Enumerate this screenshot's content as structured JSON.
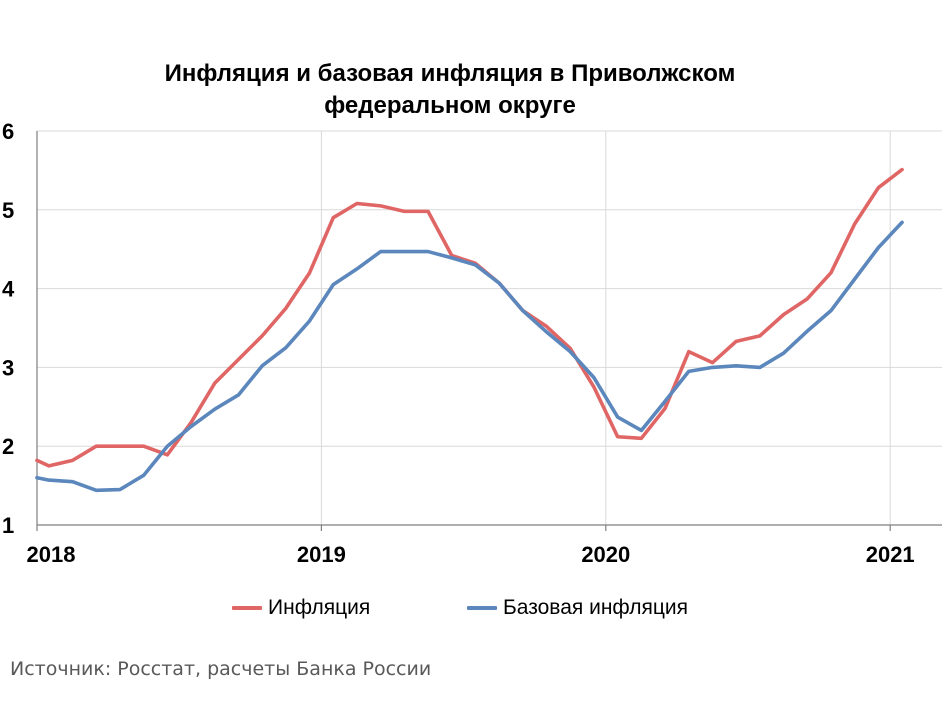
{
  "chart_data": {
    "type": "line",
    "title": [
      "Инфляция и базовая инфляция в Приволжском",
      "федеральном округе"
    ],
    "xlabel": "",
    "ylabel": "",
    "ylim": [
      1,
      6
    ],
    "yticks": [
      "1",
      "2",
      "3",
      "4",
      "5",
      "6"
    ],
    "xticks": [
      {
        "label": "2018",
        "x": 0
      },
      {
        "label": "2019",
        "x": 12
      },
      {
        "label": "2020",
        "x": 24
      },
      {
        "label": "2021",
        "x": 36
      }
    ],
    "xlim": [
      0,
      38
    ],
    "grid": "horizontal",
    "legend_position": "bottom",
    "series": [
      {
        "name": "Инфляция",
        "color": "#e06666",
        "x": [
          0,
          0.5,
          1.5,
          2.5,
          3.5,
          4.5,
          5.5,
          6.5,
          7.5,
          8.5,
          9.5,
          10.5,
          11.5,
          12.5,
          13.5,
          14.5,
          15.5,
          16.5,
          17.5,
          18.5,
          19.5,
          20.5,
          21.5,
          22.5,
          23.5,
          24.5,
          25.5,
          26.5,
          27.5,
          28.5,
          29.5,
          30.5,
          31.5,
          32.5,
          33.5,
          34.5,
          35.5,
          36.5
        ],
        "values": [
          1.82,
          1.75,
          1.82,
          2.0,
          2.0,
          2.0,
          1.89,
          2.3,
          2.8,
          3.1,
          3.4,
          3.75,
          4.2,
          4.9,
          5.08,
          5.05,
          4.98,
          4.98,
          4.42,
          4.32,
          4.07,
          3.72,
          3.52,
          3.24,
          2.75,
          2.12,
          2.1,
          2.48,
          3.2,
          3.06,
          3.33,
          3.4,
          3.67,
          3.87,
          4.2,
          4.82,
          5.28,
          5.51
        ]
      },
      {
        "name": "Базовая инфляция",
        "color": "#5b87bd",
        "x": [
          0,
          0.5,
          1.5,
          2.5,
          3.5,
          4.5,
          5.5,
          6.5,
          7.5,
          8.5,
          9.5,
          10.5,
          11.5,
          12.5,
          13.5,
          14.5,
          15.5,
          16.5,
          17.5,
          18.5,
          19.5,
          20.5,
          21.5,
          22.5,
          23.5,
          24.5,
          25.5,
          26.5,
          27.5,
          28.5,
          29.5,
          30.5,
          31.5,
          32.5,
          33.5,
          34.5,
          35.5,
          36.5
        ],
        "values": [
          1.6,
          1.57,
          1.55,
          1.44,
          1.45,
          1.63,
          2.0,
          2.25,
          2.47,
          2.65,
          3.02,
          3.25,
          3.59,
          4.05,
          4.25,
          4.47,
          4.47,
          4.47,
          4.39,
          4.3,
          4.07,
          3.72,
          3.45,
          3.2,
          2.87,
          2.37,
          2.2,
          2.57,
          2.95,
          3.0,
          3.02,
          3.0,
          3.18,
          3.46,
          3.72,
          4.12,
          4.52,
          4.84
        ]
      }
    ]
  },
  "source": "Источник: Росстат, расчеты Банка России"
}
